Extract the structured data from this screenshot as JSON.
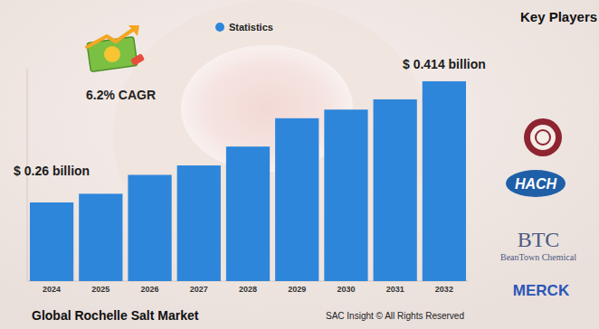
{
  "chart_data": {
    "type": "bar",
    "title": "Global Rochelle Salt Market",
    "source": "SAC Insight © All Rights Reserved",
    "annotations": [
      "6.2% CAGR"
    ],
    "categories": [
      "2024",
      "2025",
      "2026",
      "2027",
      "2028",
      "2029",
      "2030",
      "2031",
      "2032"
    ],
    "series": [
      {
        "name": "Statistics",
        "color": "#2e86da",
        "values": [
          0.26,
          0.271,
          0.295,
          0.307,
          0.331,
          0.367,
          0.378,
          0.391,
          0.414
        ],
        "value_labels": [
          "$ 0.26 billion",
          null,
          null,
          null,
          null,
          null,
          null,
          null,
          "$ 0.414 billion"
        ]
      }
    ],
    "ylim": [
      0.16,
      0.43
    ],
    "legend": "top",
    "data_labels": true,
    "tick_labels": "x",
    "grid": false
  },
  "key_players": {
    "title": "Key Players",
    "logos": [
      "HACH",
      "BTC",
      "BeanTown Chemical",
      "MERCK"
    ]
  }
}
